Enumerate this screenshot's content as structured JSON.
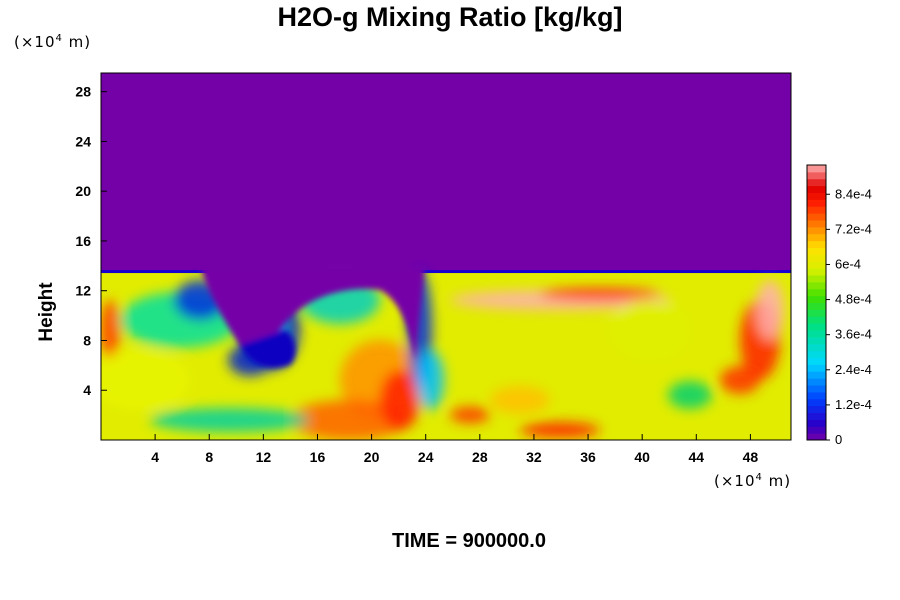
{
  "chart_data": {
    "type": "heatmap",
    "title": "H2O-g Mixing Ratio [kg/kg]",
    "ylabel": "Height",
    "x_unit_prefix": "(×10",
    "x_unit_exp": "4",
    "x_unit_suffix": " m)",
    "y_unit_prefix": "(×10",
    "y_unit_exp": "4",
    "y_unit_suffix": " m)",
    "x_ticks": [
      4,
      8,
      12,
      16,
      20,
      24,
      28,
      32,
      36,
      40,
      44,
      48
    ],
    "y_ticks": [
      4,
      8,
      12,
      16,
      20,
      24,
      28
    ],
    "xlim": [
      0,
      51
    ],
    "ylim": [
      0,
      29.5
    ],
    "colorbar": {
      "range": [
        0,
        0.00094
      ],
      "tick_values": [
        0,
        0.00012,
        0.00024,
        0.00036,
        0.00048,
        0.0006,
        0.00072,
        0.00084
      ],
      "tick_labels": [
        "0",
        "1.2e-4",
        "2.4e-4",
        "3.6e-4",
        "4.8e-4",
        "6e-4",
        "7.2e-4",
        "8.4e-4"
      ]
    },
    "layers": {
      "dry_top_value": 0,
      "moist_top_height": 13.5,
      "moist_value": 0.0006
    },
    "caption": "TIME = 900000.0"
  },
  "colors": {
    "dry": "#7400a8",
    "moist_base": "#c8f200",
    "moist_high": "#ffb0b0",
    "frame": "#000000"
  }
}
